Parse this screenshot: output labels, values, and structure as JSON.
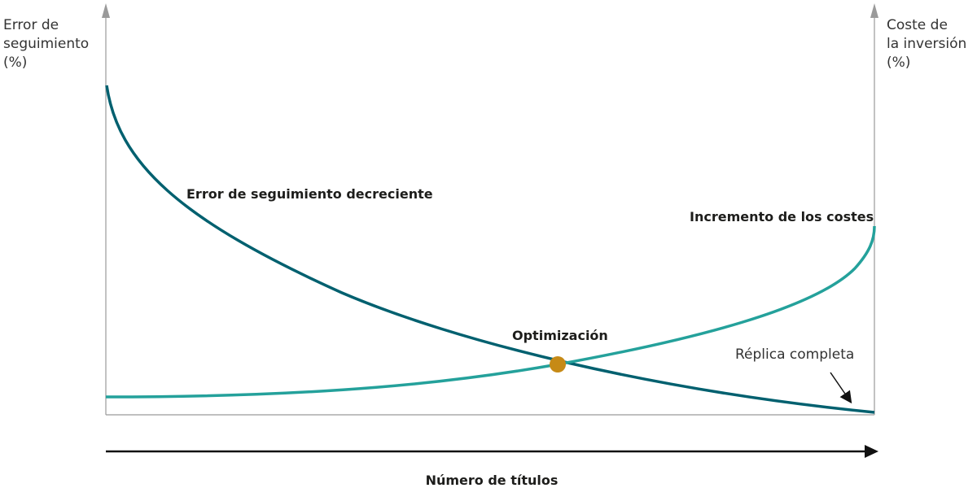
{
  "left_axis_label": "Error de\nseguimiento\n(%)",
  "right_axis_label": "Coste de\nla inversión\n(%)",
  "x_axis_label": "Número de títulos",
  "curves": {
    "tracking_error": {
      "label": "Error de seguimiento decreciente",
      "color": "#00606f"
    },
    "costs": {
      "label": "Incremento de los costes",
      "color": "#24a19b"
    }
  },
  "optimum": {
    "label": "Optimización",
    "color": "#c68a16"
  },
  "full_replication": {
    "label": "Réplica completa"
  }
}
